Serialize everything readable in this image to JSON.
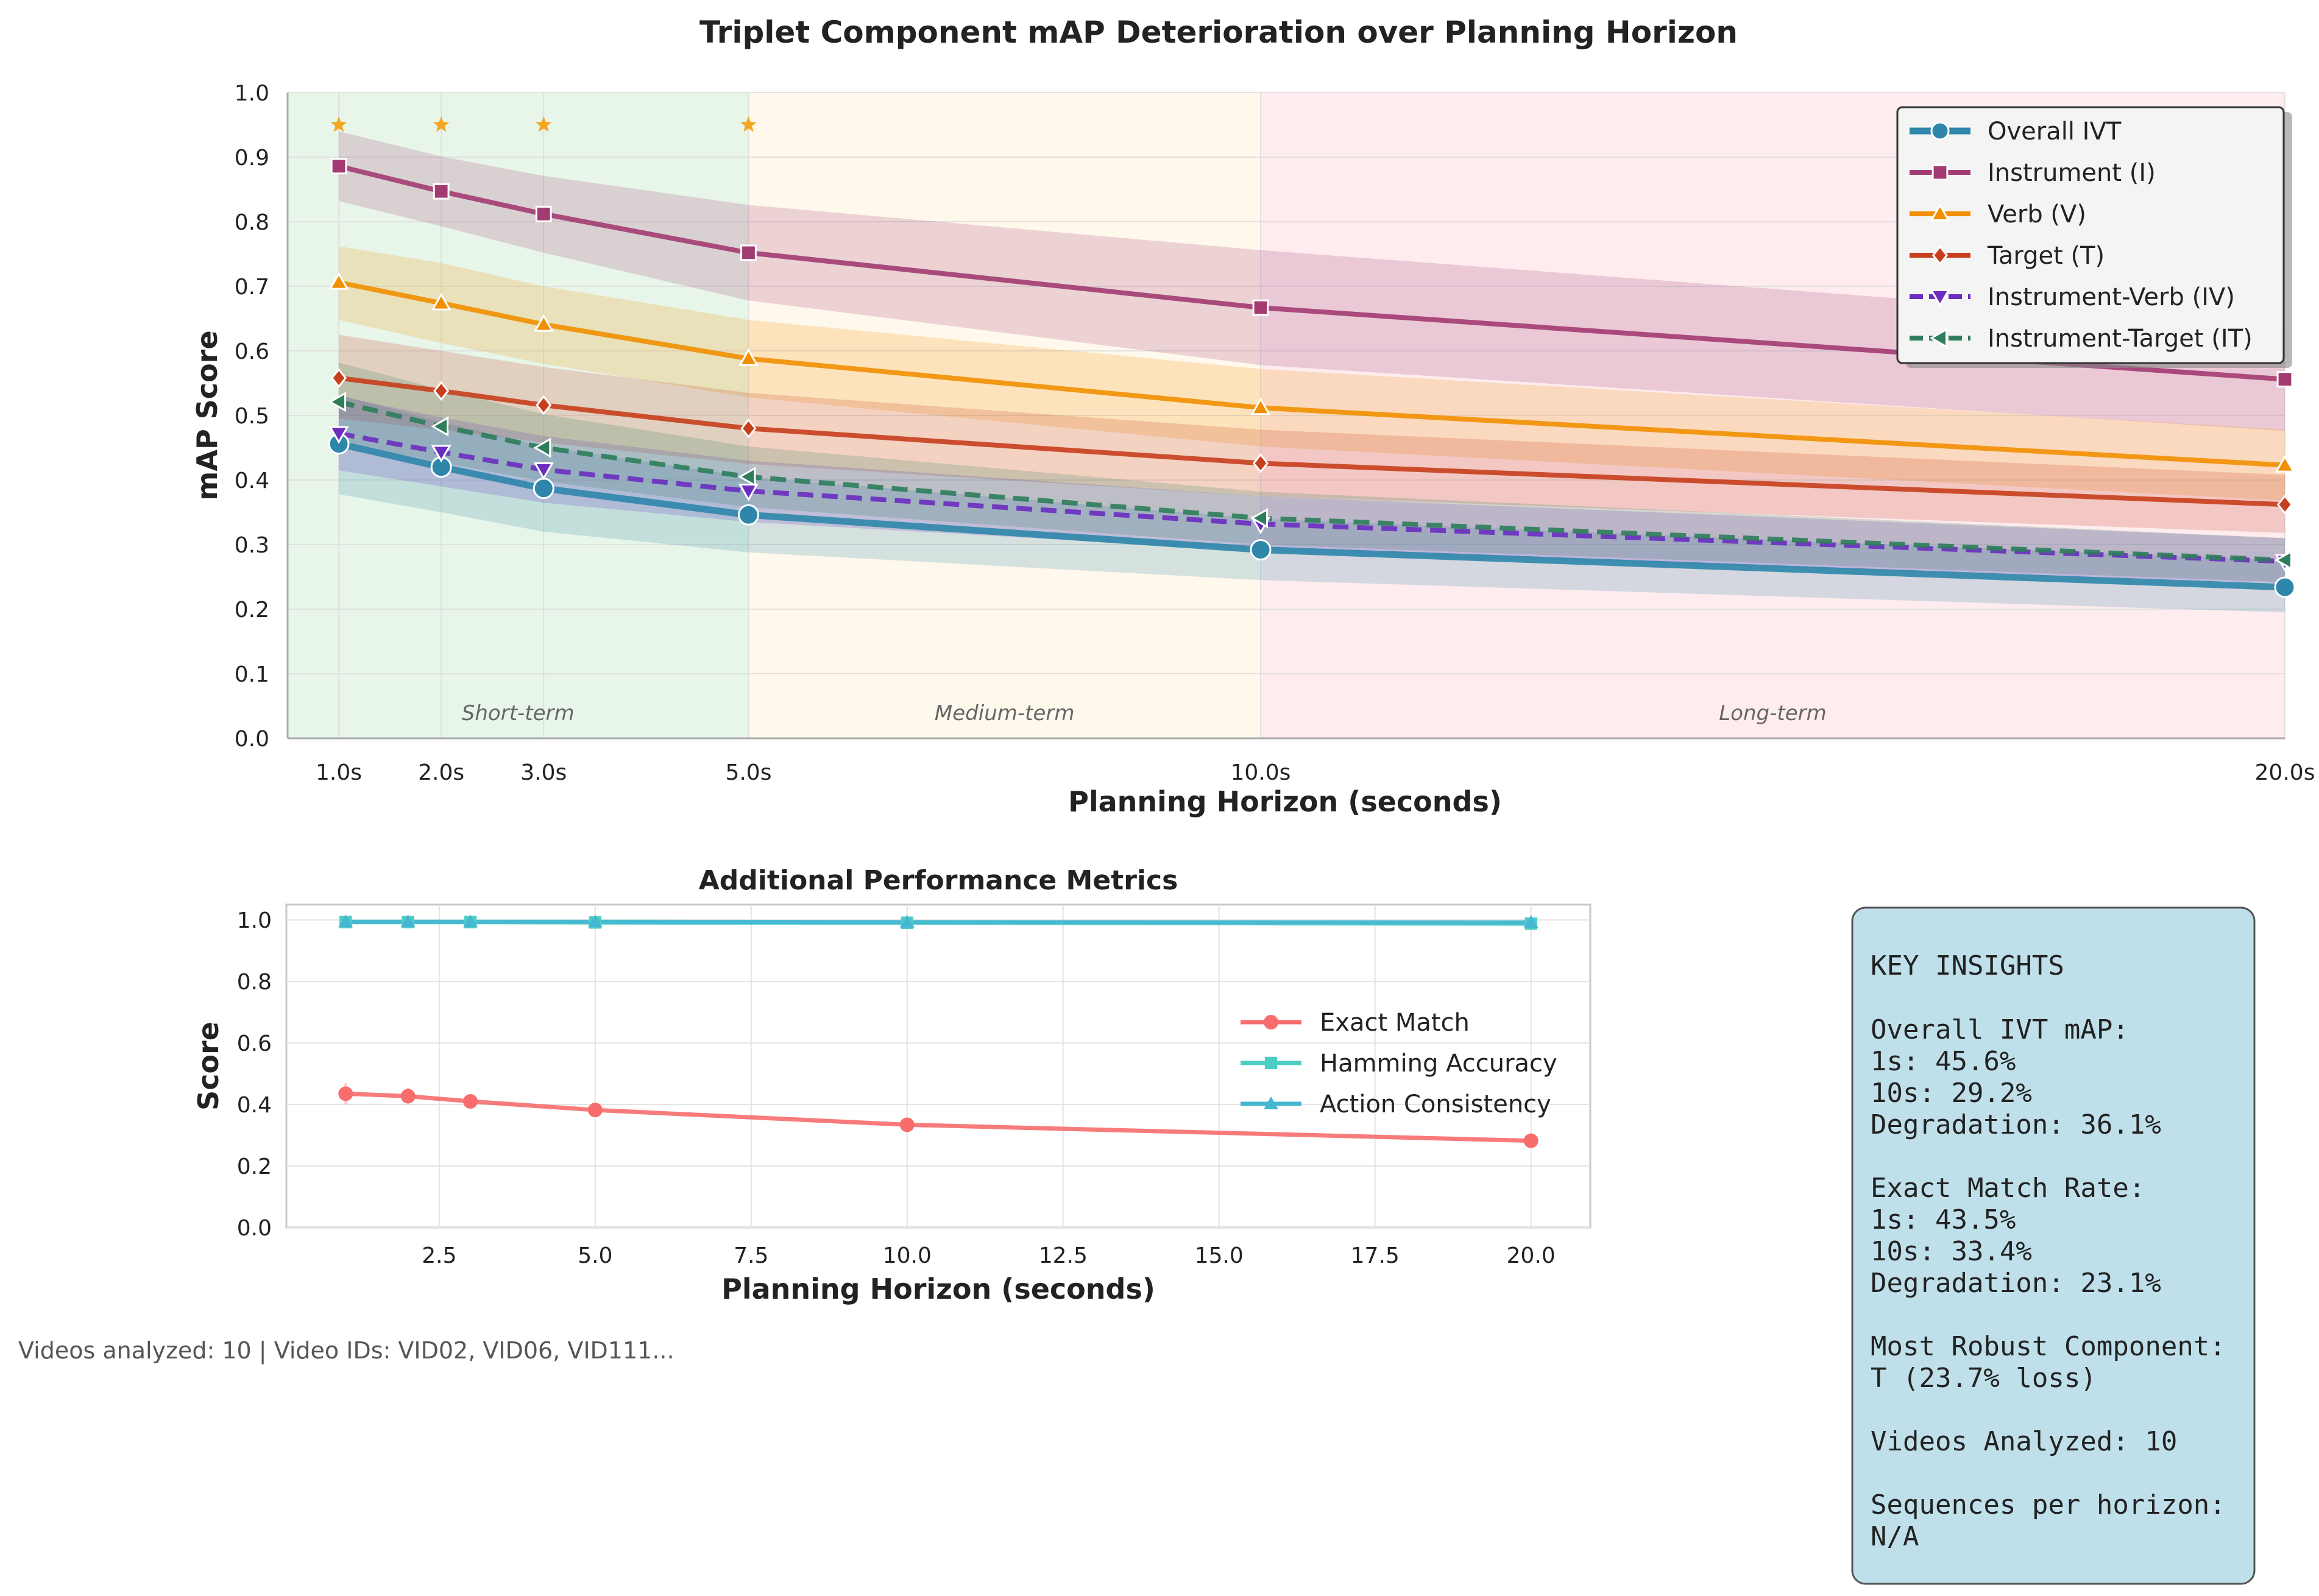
{
  "colors": {
    "overall": "#2E86AB",
    "instrument": "#A23B72",
    "verb": "#F18F01",
    "target": "#C73E1D",
    "iv": "#6A2DC0",
    "it": "#2E7D5B",
    "exact": "#F76D6D",
    "hamming": "#4ECDC4",
    "consistency": "#45B7D1",
    "star": "#F5A623",
    "short_bg": "#e8f5e9",
    "medium_bg": "#fff8ec",
    "long_bg": "#feecee",
    "insight_bg": "#bfe0ea"
  },
  "chart_data": [
    {
      "type": "line",
      "title": "Triplet Component mAP Deterioration over Planning Horizon",
      "xlabel": "Planning Horizon (seconds)",
      "ylabel": "mAP Score",
      "x": [
        1,
        2,
        3,
        5,
        10,
        20
      ],
      "x_tick_labels": [
        "1.0s",
        "2.0s",
        "3.0s",
        "5.0s",
        "10.0s",
        "20.0s"
      ],
      "xlim": [
        0.5,
        20
      ],
      "ylim": [
        0,
        1
      ],
      "y_ticks": [
        "0.0",
        "0.1",
        "0.2",
        "0.3",
        "0.4",
        "0.5",
        "0.6",
        "0.7",
        "0.8",
        "0.9",
        "1.0"
      ],
      "grid": true,
      "legend": "top-right",
      "zones": [
        {
          "label": "Short-term",
          "from": 0.5,
          "to": 5
        },
        {
          "label": "Medium-term",
          "from": 5,
          "to": 10
        },
        {
          "label": "Long-term",
          "from": 10,
          "to": 20
        }
      ],
      "star_x": [
        1,
        2,
        3,
        5
      ],
      "star_y": 0.95,
      "series": [
        {
          "key": "overall",
          "name": "Overall IVT",
          "marker": "circle",
          "dashed": false,
          "width": 11,
          "values": [
            0.456,
            0.42,
            0.387,
            0.346,
            0.292,
            0.234
          ],
          "lower": [
            0.378,
            0.35,
            0.32,
            0.288,
            0.245,
            0.195
          ],
          "upper": [
            0.532,
            0.49,
            0.452,
            0.405,
            0.34,
            0.275
          ]
        },
        {
          "key": "instrument",
          "name": "Instrument (I)",
          "marker": "square",
          "dashed": false,
          "width": 8,
          "values": [
            0.886,
            0.847,
            0.812,
            0.752,
            0.667,
            0.556
          ],
          "lower": [
            0.832,
            0.793,
            0.752,
            0.678,
            0.578,
            0.476
          ],
          "upper": [
            0.94,
            0.901,
            0.871,
            0.826,
            0.756,
            0.636
          ]
        },
        {
          "key": "verb",
          "name": "Verb (V)",
          "marker": "triangle-up",
          "dashed": false,
          "width": 8,
          "values": [
            0.706,
            0.674,
            0.641,
            0.588,
            0.512,
            0.423
          ],
          "lower": [
            0.648,
            0.612,
            0.58,
            0.528,
            0.452,
            0.368
          ],
          "upper": [
            0.762,
            0.736,
            0.7,
            0.648,
            0.572,
            0.478
          ]
        },
        {
          "key": "target",
          "name": "Target (T)",
          "marker": "diamond",
          "dashed": false,
          "width": 8,
          "values": [
            0.558,
            0.538,
            0.516,
            0.48,
            0.426,
            0.362
          ],
          "lower": [
            0.495,
            0.478,
            0.458,
            0.425,
            0.375,
            0.318
          ],
          "upper": [
            0.625,
            0.6,
            0.575,
            0.535,
            0.478,
            0.408
          ]
        },
        {
          "key": "iv",
          "name": "Instrument-Verb (IV)",
          "marker": "triangle-down",
          "dashed": true,
          "width": 8,
          "values": [
            0.472,
            0.443,
            0.416,
            0.383,
            0.332,
            0.274
          ],
          "lower": [
            0.415,
            0.39,
            0.365,
            0.335,
            0.29,
            0.24
          ],
          "upper": [
            0.53,
            0.497,
            0.468,
            0.43,
            0.375,
            0.31
          ]
        },
        {
          "key": "it",
          "name": "Instrument-Target (IT)",
          "marker": "triangle-left",
          "dashed": true,
          "width": 8,
          "values": [
            0.521,
            0.483,
            0.45,
            0.405,
            0.341,
            0.276
          ],
          "lower": [
            0.46,
            0.427,
            0.398,
            0.358,
            0.3,
            0.242
          ],
          "upper": [
            0.582,
            0.54,
            0.502,
            0.452,
            0.382,
            0.31
          ]
        }
      ]
    },
    {
      "type": "line",
      "title": "Additional Performance Metrics",
      "xlabel": "Planning Horizon (seconds)",
      "ylabel": "Score",
      "x": [
        1,
        2,
        3,
        5,
        10,
        20
      ],
      "xlim": [
        0.05,
        20.95
      ],
      "x_ticks": [
        2.5,
        5.0,
        7.5,
        10.0,
        12.5,
        15.0,
        17.5,
        20.0
      ],
      "x_tick_labels": [
        "2.5",
        "5.0",
        "7.5",
        "10.0",
        "12.5",
        "15.0",
        "17.5",
        "20.0"
      ],
      "ylim": [
        0,
        1.05
      ],
      "y_ticks": [
        "0.0",
        "0.2",
        "0.4",
        "0.6",
        "0.8",
        "1.0"
      ],
      "grid": true,
      "legend": "center-right",
      "series": [
        {
          "key": "exact",
          "name": "Exact Match",
          "marker": "circle",
          "values": [
            0.435,
            0.427,
            0.41,
            0.382,
            0.334,
            0.282
          ],
          "err": [
            0.035,
            0.028,
            0.015,
            0.01,
            0.01,
            0.012
          ]
        },
        {
          "key": "hamming",
          "name": "Hamming Accuracy",
          "marker": "square",
          "values": [
            0.993,
            0.993,
            0.993,
            0.992,
            0.991,
            0.988
          ],
          "err": [
            0.003,
            0.003,
            0.003,
            0.003,
            0.003,
            0.004
          ]
        },
        {
          "key": "consistency",
          "name": "Action Consistency",
          "marker": "triangle-up",
          "values": [
            0.994,
            0.994,
            0.994,
            0.994,
            0.993,
            0.992
          ],
          "err": [
            0.002,
            0.002,
            0.002,
            0.002,
            0.002,
            0.003
          ]
        }
      ]
    }
  ],
  "footer_text": "Videos analyzed: 10 | Video IDs: VID02, VID06, VID111...",
  "insights": {
    "title": "KEY INSIGHTS",
    "ivt_heading": "Overall IVT mAP:",
    "ivt_1s": "1s: 45.6%",
    "ivt_10s": "10s: 29.2%",
    "ivt_degradation": "Degradation: 36.1%",
    "em_heading": "Exact Match Rate:",
    "em_1s": "1s: 43.5%",
    "em_10s": "10s: 33.4%",
    "em_degradation": "Degradation: 23.1%",
    "robust_heading": "Most Robust Component:",
    "robust_value": "T (23.7% loss)",
    "videos": "Videos Analyzed: 10",
    "sequences_heading": "Sequences per horizon:",
    "sequences_value": "N/A"
  }
}
